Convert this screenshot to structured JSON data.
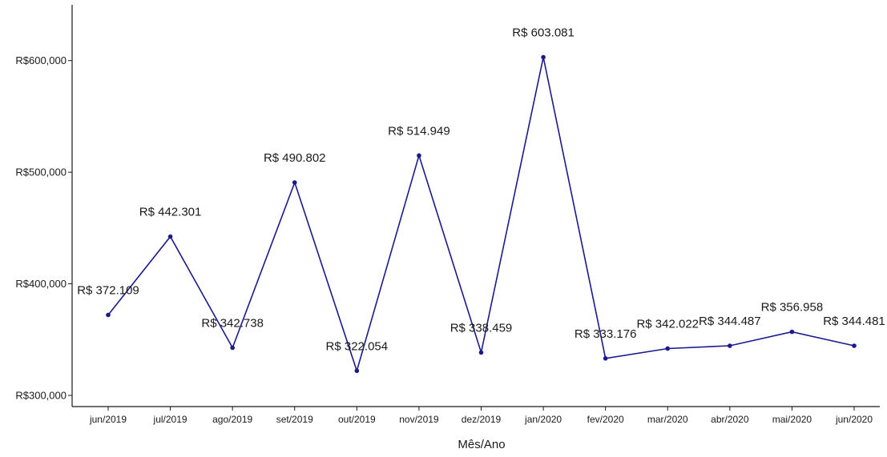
{
  "chart_data": {
    "type": "line",
    "title": "",
    "xlabel": "Mês/Ano",
    "ylabel": "",
    "ylim": [
      290000,
      650000
    ],
    "y_ticks": [
      300000,
      400000,
      500000,
      600000
    ],
    "y_tick_labels": [
      "R$300,000",
      "R$400,000",
      "R$500,000",
      "R$600,000"
    ],
    "grid": false,
    "categories": [
      "jun/2019",
      "jul/2019",
      "ago/2019",
      "set/2019",
      "out/2019",
      "nov/2019",
      "dez/2019",
      "jan/2020",
      "fev/2020",
      "mar/2020",
      "abr/2020",
      "mai/2020",
      "jun/2020"
    ],
    "series": [
      {
        "values": [
          372109,
          442301,
          342738,
          490802,
          322054,
          514949,
          338459,
          603081,
          333176,
          342022,
          344487,
          356958,
          344481
        ],
        "data_labels": [
          "R$ 372.109",
          "R$ 442.301",
          "R$ 342.738",
          "R$ 490.802",
          "R$ 322.054",
          "R$ 514.949",
          "R$ 338.459",
          "R$ 603.081",
          "R$ 333.176",
          "R$ 342.022",
          "R$ 344.487",
          "R$ 356.958",
          "R$ 344.481"
        ],
        "color": "#1a1a8c"
      }
    ]
  }
}
